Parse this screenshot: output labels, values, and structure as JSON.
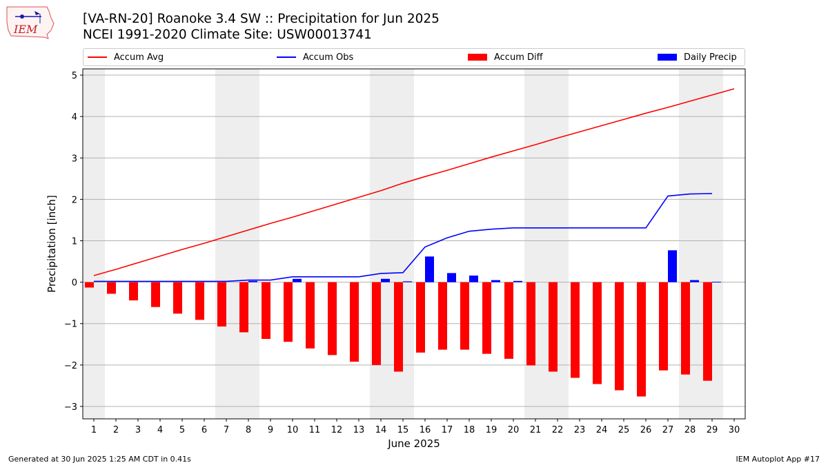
{
  "logo": {
    "text": "IEM"
  },
  "title_line1": "[VA-RN-20] Roanoke 3.4 SW :: Precipitation for Jun 2025",
  "title_line2": "NCEI 1991-2020 Climate Site: USW00013741",
  "legend": [
    {
      "label": "Accum Avg",
      "kind": "line",
      "color": "#ff0000"
    },
    {
      "label": "Accum Obs",
      "kind": "line",
      "color": "#0000ff"
    },
    {
      "label": "Accum Diff",
      "kind": "bar",
      "color": "#ff0000"
    },
    {
      "label": "Daily Precip",
      "kind": "bar",
      "color": "#0000ff"
    }
  ],
  "footer_left": "Generated at 30 Jun 2025 1:25 AM CDT in 0.41s",
  "footer_right": "IEM Autoplot App #17",
  "chart_data": {
    "type": "bar",
    "xlabel": "June 2025",
    "ylabel": "Precipitation [inch]",
    "ylim": [
      -3.3,
      5.15
    ],
    "xlim": [
      0.5,
      30.5
    ],
    "yticks": [
      5,
      4,
      3,
      2,
      1,
      0,
      -1,
      -2,
      -3
    ],
    "ytick_labels": [
      "5",
      "4",
      "3",
      "2",
      "1",
      "0",
      "−1",
      "−2",
      "−3"
    ],
    "categories": [
      "1",
      "2",
      "3",
      "4",
      "5",
      "6",
      "7",
      "8",
      "9",
      "10",
      "11",
      "12",
      "13",
      "14",
      "15",
      "16",
      "17",
      "18",
      "19",
      "20",
      "21",
      "22",
      "23",
      "24",
      "25",
      "26",
      "27",
      "28",
      "29",
      "30"
    ],
    "weekend_shading": [
      [
        0.5,
        1.5
      ],
      [
        6.5,
        8.5
      ],
      [
        13.5,
        15.5
      ],
      [
        20.5,
        22.5
      ],
      [
        27.5,
        29.5
      ]
    ],
    "grid": true,
    "series": [
      {
        "name": "Accum Avg",
        "type": "line",
        "color": "#ff0000",
        "x": [
          1,
          2,
          3,
          4,
          5,
          6,
          7,
          8,
          9,
          10,
          11,
          12,
          13,
          14,
          15,
          16,
          17,
          18,
          19,
          20,
          21,
          22,
          23,
          24,
          25,
          26,
          27,
          28,
          29,
          30
        ],
        "values": [
          0.16,
          0.31,
          0.47,
          0.63,
          0.79,
          0.94,
          1.1,
          1.26,
          1.42,
          1.57,
          1.73,
          1.89,
          2.05,
          2.21,
          2.39,
          2.55,
          2.7,
          2.86,
          3.02,
          3.17,
          3.32,
          3.48,
          3.63,
          3.78,
          3.93,
          4.08,
          4.22,
          4.37,
          4.52,
          4.67
        ]
      },
      {
        "name": "Accum Obs",
        "type": "line",
        "color": "#0000ff",
        "x": [
          1,
          2,
          3,
          4,
          5,
          6,
          7,
          8,
          9,
          10,
          11,
          12,
          13,
          14,
          15,
          16,
          17,
          18,
          19,
          20,
          21,
          22,
          23,
          24,
          25,
          26,
          27,
          28,
          29
        ],
        "values": [
          0.02,
          0.02,
          0.02,
          0.02,
          0.02,
          0.02,
          0.02,
          0.05,
          0.05,
          0.13,
          0.13,
          0.13,
          0.13,
          0.21,
          0.23,
          0.85,
          1.07,
          1.23,
          1.28,
          1.31,
          1.31,
          1.31,
          1.31,
          1.31,
          1.31,
          1.31,
          2.08,
          2.13,
          2.14
        ]
      },
      {
        "name": "Accum Diff",
        "type": "bar",
        "color": "#ff0000",
        "x": [
          1,
          2,
          3,
          4,
          5,
          6,
          7,
          8,
          9,
          10,
          11,
          12,
          13,
          14,
          15,
          16,
          17,
          18,
          19,
          20,
          21,
          22,
          23,
          24,
          25,
          26,
          27,
          28,
          29
        ],
        "values": [
          -0.13,
          -0.28,
          -0.44,
          -0.6,
          -0.76,
          -0.91,
          -1.07,
          -1.21,
          -1.37,
          -1.44,
          -1.6,
          -1.76,
          -1.92,
          -2.0,
          -2.16,
          -1.7,
          -1.63,
          -1.63,
          -1.73,
          -1.85,
          -2.01,
          -2.16,
          -2.31,
          -2.46,
          -2.61,
          -2.76,
          -2.13,
          -2.23,
          -2.38
        ]
      },
      {
        "name": "Daily Precip",
        "type": "bar",
        "color": "#0000ff",
        "x": [
          8,
          10,
          14,
          15,
          16,
          17,
          18,
          19,
          20,
          27,
          28,
          29
        ],
        "values": [
          0.03,
          0.08,
          0.08,
          0.02,
          0.62,
          0.22,
          0.16,
          0.05,
          0.03,
          0.77,
          0.05,
          0.01
        ]
      }
    ]
  }
}
